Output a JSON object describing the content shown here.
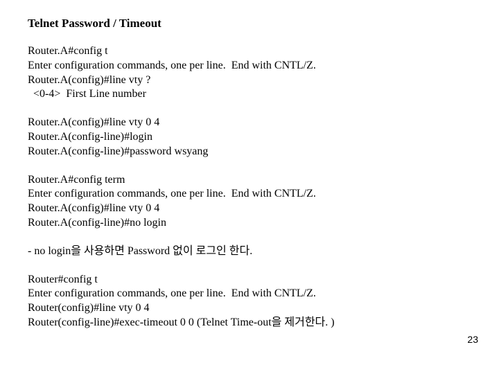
{
  "title": "Telnet Password / Timeout",
  "block1": {
    "l1": "Router.A#config t",
    "l2": "Enter configuration commands, one per line.  End with CNTL/Z.",
    "l3": "Router.A(config)#line vty ?",
    "l4": "  <0-4>  First Line number"
  },
  "block2": {
    "l1": "Router.A(config)#line vty 0 4",
    "l2": "Router.A(config-line)#login",
    "l3": "Router.A(config-line)#password wsyang"
  },
  "block3": {
    "l1": "Router.A#config term",
    "l2": "Enter configuration commands, one per line.  End with CNTL/Z.",
    "l3": "Router.A(config)#line vty 0 4",
    "l4": "Router.A(config-line)#no login"
  },
  "note1": "- no login을 사용하면 Password 없이 로그인 한다.",
  "block4": {
    "l1": "Router#config t",
    "l2": "Enter configuration commands, one per line.  End with CNTL/Z.",
    "l3": "Router(config)#line vty 0 4",
    "l4": "Router(config-line)#exec-timeout 0 0 (Telnet Time-out을 제거한다. )"
  },
  "pageNumber": "23",
  "colors": {
    "text": "#000000",
    "background": "#ffffff"
  },
  "fontsize": {
    "title": 17,
    "body": 16,
    "pagenum": 14
  }
}
